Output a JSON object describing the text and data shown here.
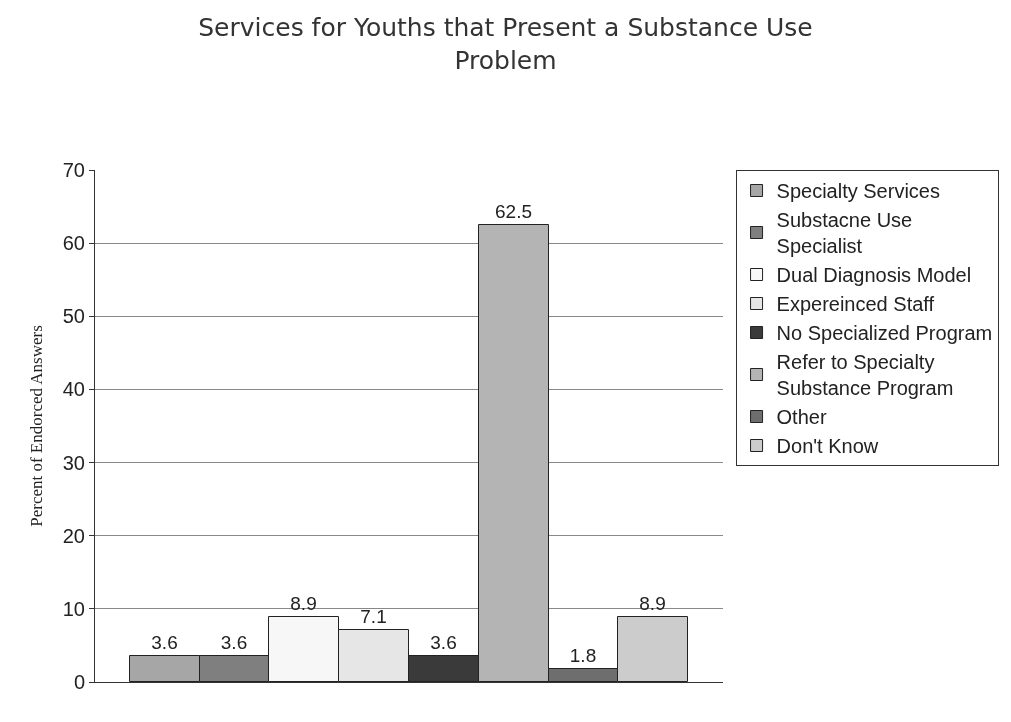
{
  "chart_data": {
    "type": "bar",
    "title": "Services for Youths that Present a Substance Use Problem",
    "ylabel": "Percent of Endorced Answers",
    "categories": [
      null,
      null,
      null,
      null,
      null,
      null,
      null,
      null
    ],
    "series": [
      {
        "name": "Specialty Services",
        "color": "#a6a6a6",
        "values": [
          3.6,
          null,
          null,
          null,
          null,
          null,
          null,
          null
        ]
      },
      {
        "name": "Substacne Use Specialist",
        "color": "#7f7f7f",
        "values": [
          null,
          3.6,
          null,
          null,
          null,
          null,
          null,
          null
        ]
      },
      {
        "name": "Dual Diagnosis Model",
        "color": "#f7f7f7",
        "values": [
          null,
          null,
          8.9,
          null,
          null,
          null,
          null,
          null
        ]
      },
      {
        "name": "Expereinced Staff",
        "color": "#e6e6e6",
        "values": [
          null,
          null,
          null,
          7.1,
          null,
          null,
          null,
          null
        ]
      },
      {
        "name": "No Specialized Program",
        "color": "#3a3a3a",
        "values": [
          null,
          null,
          null,
          null,
          3.6,
          null,
          null,
          null
        ]
      },
      {
        "name": "Refer to Specialty Substance Program",
        "color": "#b4b4b4",
        "values": [
          null,
          null,
          null,
          null,
          null,
          62.5,
          null,
          null
        ]
      },
      {
        "name": "Other",
        "color": "#6e6e6e",
        "values": [
          null,
          null,
          null,
          null,
          null,
          null,
          1.8,
          null
        ]
      },
      {
        "name": "Don't Know",
        "color": "#cccccc",
        "values": [
          null,
          null,
          null,
          null,
          null,
          null,
          null,
          8.9
        ]
      }
    ],
    "ylim": [
      0,
      70
    ],
    "yticks": [
      0,
      10,
      20,
      30,
      40,
      50,
      60,
      70
    ],
    "grid": "y",
    "legend": "right",
    "data_labels": true,
    "tick_labels": "y"
  }
}
